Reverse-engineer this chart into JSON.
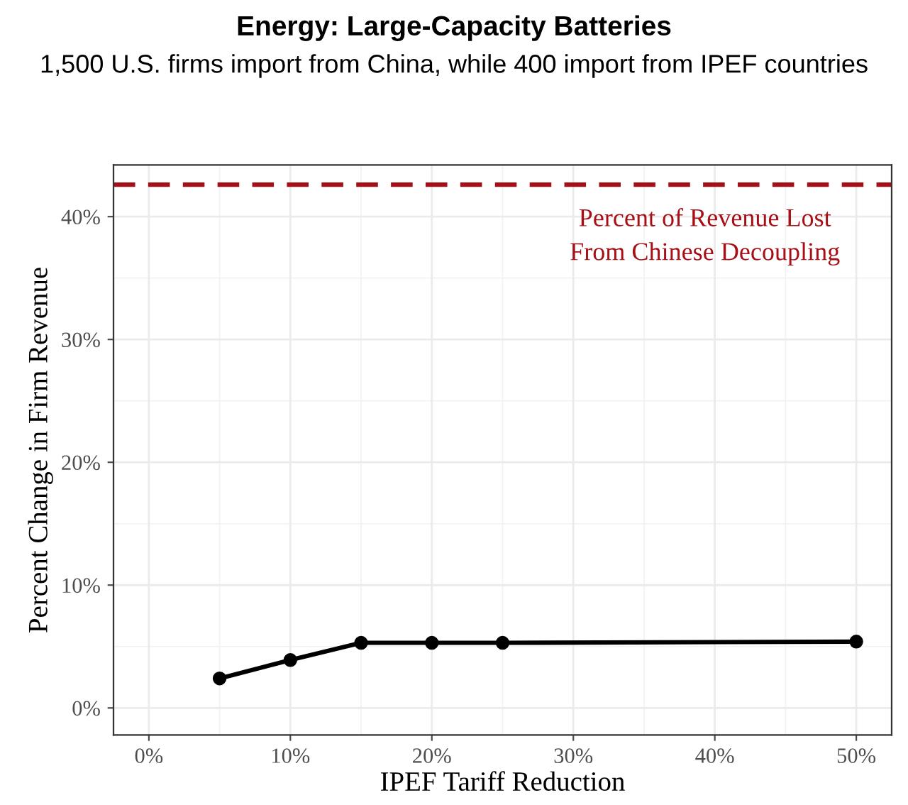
{
  "chart_data": {
    "type": "line",
    "title": "Energy: Large-Capacity Batteries",
    "subtitle": "1,500 U.S. firms import from China, while 400 import from IPEF countries",
    "xlabel": "IPEF Tariff Reduction",
    "ylabel": "Percent Change in Firm Revenue",
    "x": [
      5,
      10,
      15,
      20,
      25,
      50
    ],
    "series": [
      {
        "color": "#000000",
        "values": [
          2.4,
          3.9,
          5.3,
          5.3,
          5.3,
          5.4
        ]
      }
    ],
    "marker": "circle",
    "line_style": "solid",
    "xlim": [
      -2.5,
      52.5
    ],
    "ylim": [
      -2.2,
      44.2
    ],
    "xticks": [
      {
        "value": 0,
        "label": "0%"
      },
      {
        "value": 10,
        "label": "10%"
      },
      {
        "value": 20,
        "label": "20%"
      },
      {
        "value": 30,
        "label": "30%"
      },
      {
        "value": 40,
        "label": "40%"
      },
      {
        "value": 50,
        "label": "50%"
      }
    ],
    "yticks": [
      {
        "value": 0,
        "label": "0%"
      },
      {
        "value": 10,
        "label": "10%"
      },
      {
        "value": 20,
        "label": "20%"
      },
      {
        "value": 30,
        "label": "30%"
      },
      {
        "value": 40,
        "label": "40%"
      }
    ],
    "ref_lines": [
      {
        "axis": "y",
        "value": 42.6,
        "label": "Percent of Revenue Lost\nFrom Chinese Decoupling",
        "color": "#a50f15",
        "line_style": "dashed"
      }
    ],
    "grid": true,
    "legend": false
  }
}
